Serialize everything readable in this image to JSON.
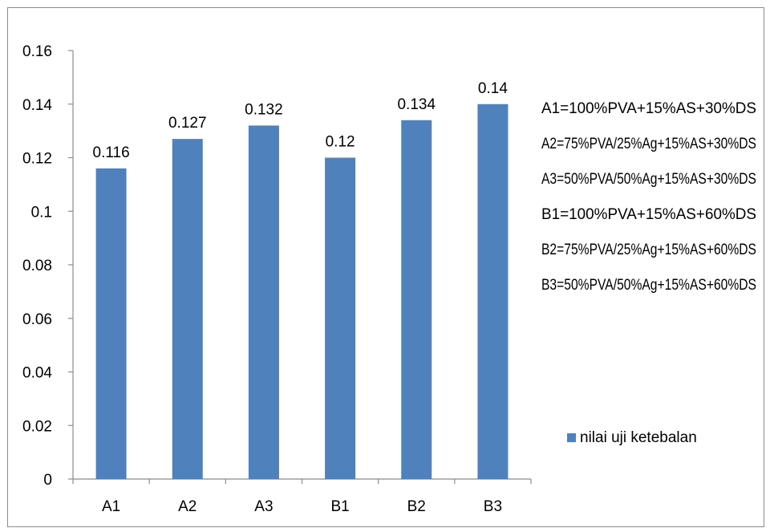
{
  "chart_data": {
    "type": "bar",
    "categories": [
      "A1",
      "A2",
      "A3",
      "B1",
      "B2",
      "B3"
    ],
    "series": [
      {
        "name": "nilai uji ketebalan",
        "values": [
          0.116,
          0.127,
          0.132,
          0.12,
          0.134,
          0.14
        ],
        "color": "#4F81BD"
      }
    ],
    "data_labels": [
      "0.116",
      "0.127",
      "0.132",
      "0.12",
      "0.134",
      "0.14"
    ],
    "ylim": [
      0,
      0.16
    ],
    "y_ticks": [
      0,
      0.02,
      0.04,
      0.06,
      0.08,
      0.1,
      0.12,
      0.14,
      0.16
    ],
    "y_tick_labels": [
      "0",
      "0.02",
      "0.04",
      "0.06",
      "0.08",
      "0.1",
      "0.12",
      "0.14",
      "0.16"
    ],
    "title": "",
    "xlabel": "",
    "ylabel": "",
    "grid": false,
    "legend_position": "right",
    "annotations": [
      "A1=100%PVA+15%AS+30%DS",
      "A2=75%PVA/25%Ag+15%AS+30%DS",
      "A3=50%PVA/50%Ag+15%AS+30%DS",
      "B1=100%PVA+15%AS+60%DS",
      "B2=75%PVA/25%Ag+15%AS+60%DS",
      "B3=50%PVA/50%Ag+15%AS+60%DS"
    ]
  }
}
